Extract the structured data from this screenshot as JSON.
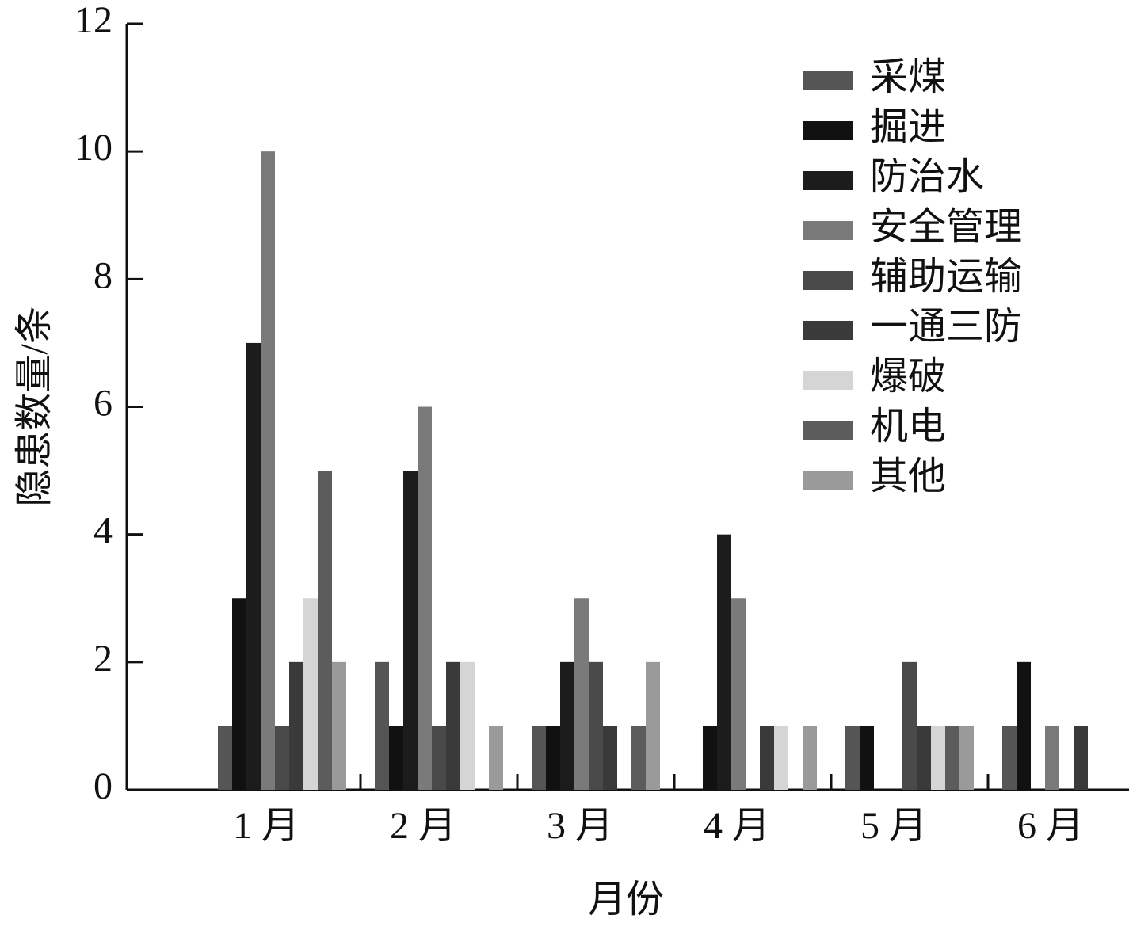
{
  "chart_data": {
    "type": "bar",
    "x_label": "月份",
    "y_label": "隐患数量/条",
    "categories": [
      "1 月",
      "2 月",
      "3 月",
      "4 月",
      "5 月",
      "6 月"
    ],
    "series": [
      {
        "name": "采煤",
        "color": "#555555",
        "values": [
          1,
          2,
          1,
          0,
          1,
          1
        ]
      },
      {
        "name": "掘进",
        "color": "#111111",
        "values": [
          3,
          1,
          1,
          1,
          1,
          2
        ]
      },
      {
        "name": "防治水",
        "color": "#1c1c1c",
        "values": [
          7,
          5,
          2,
          4,
          0,
          0
        ]
      },
      {
        "name": "安全管理",
        "color": "#7a7a7a",
        "values": [
          10,
          6,
          3,
          3,
          0,
          1
        ]
      },
      {
        "name": "辅助运输",
        "color": "#4a4a4a",
        "values": [
          1,
          1,
          2,
          0,
          2,
          0
        ]
      },
      {
        "name": "一通三防",
        "color": "#3a3a3a",
        "values": [
          2,
          2,
          1,
          1,
          1,
          1
        ]
      },
      {
        "name": "爆破",
        "color": "#d5d5d5",
        "values": [
          3,
          2,
          0,
          1,
          1,
          0
        ]
      },
      {
        "name": "机电",
        "color": "#5c5c5c",
        "values": [
          5,
          0,
          1,
          0,
          1,
          0
        ]
      },
      {
        "name": "其他",
        "color": "#9a9a9a",
        "values": [
          2,
          1,
          2,
          1,
          1,
          0
        ]
      }
    ],
    "ylim": [
      0,
      12
    ],
    "yticks": [
      0,
      2,
      4,
      6,
      8,
      10,
      12
    ],
    "legend": "upper right"
  }
}
